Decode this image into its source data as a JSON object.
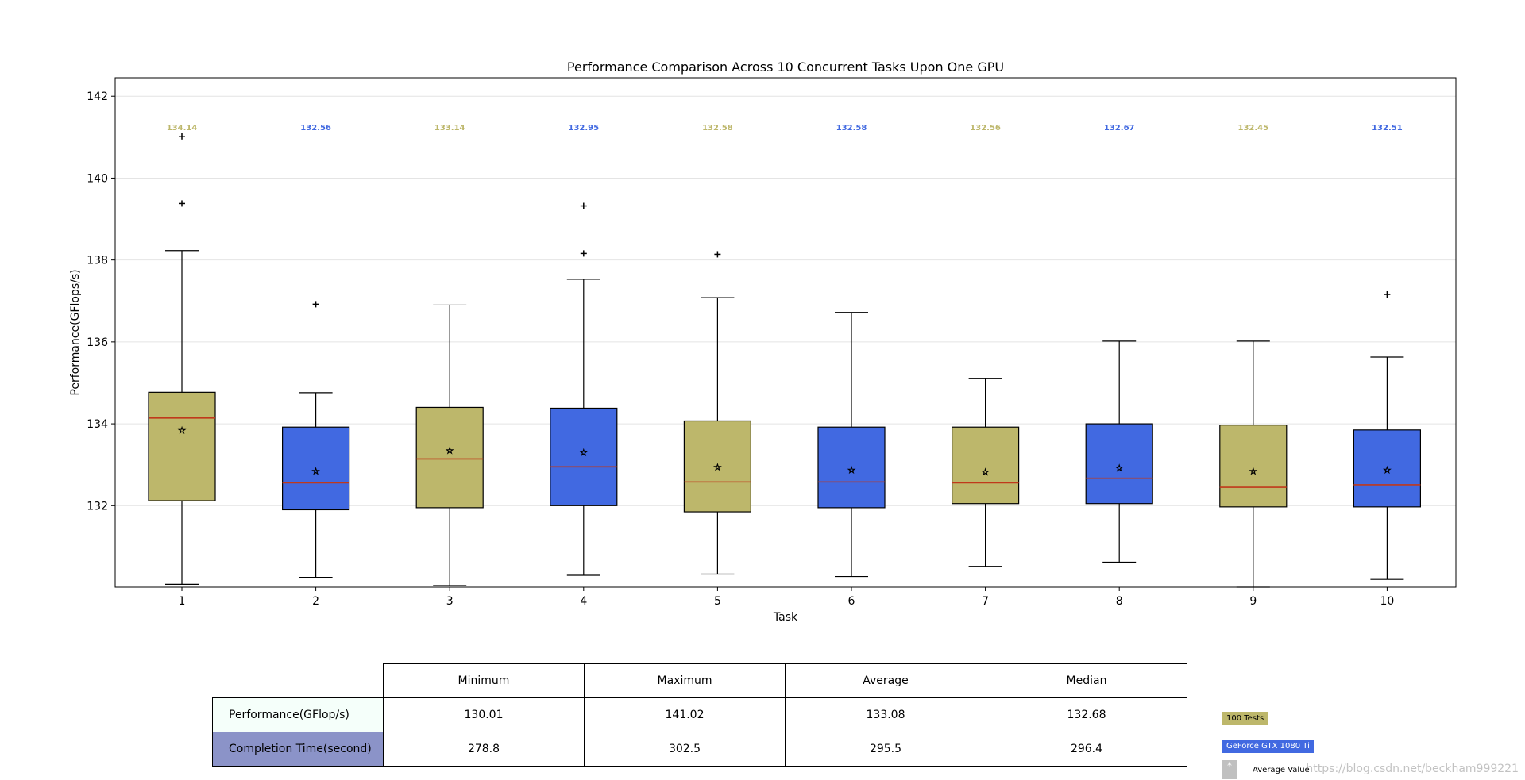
{
  "chart_data": {
    "type": "box",
    "title": "Performance Comparison Across 10 Concurrent Tasks Upon One GPU",
    "xlabel": "Task",
    "ylabel": "Performance(GFlops/s)",
    "ylim": [
      130.01,
      142.45
    ],
    "yticks": [
      132,
      134,
      136,
      138,
      140,
      142
    ],
    "categories": [
      "1",
      "2",
      "3",
      "4",
      "5",
      "6",
      "7",
      "8",
      "9",
      "10"
    ],
    "colors": {
      "odd": "#bdb76b",
      "even": "#4169e1",
      "median": "#c0391b",
      "odd_label": "#bdb76b",
      "even_label": "#4169e1"
    },
    "boxes": [
      {
        "label": "1",
        "whisker_low": 130.08,
        "q1": 132.12,
        "median": 134.14,
        "q3": 134.77,
        "whisker_high": 138.23,
        "mean": 133.85,
        "outliers": [
          141.02,
          139.38
        ],
        "median_label": "134.14"
      },
      {
        "label": "2",
        "whisker_low": 130.25,
        "q1": 131.9,
        "median": 132.56,
        "q3": 133.92,
        "whisker_high": 134.76,
        "mean": 132.85,
        "outliers": [
          136.92
        ],
        "median_label": "132.56"
      },
      {
        "label": "3",
        "whisker_low": 130.05,
        "q1": 131.95,
        "median": 133.14,
        "q3": 134.4,
        "whisker_high": 136.9,
        "mean": 133.35,
        "outliers": [],
        "median_label": "133.14"
      },
      {
        "label": "4",
        "whisker_low": 130.3,
        "q1": 132.0,
        "median": 132.95,
        "q3": 134.38,
        "whisker_high": 137.53,
        "mean": 133.3,
        "outliers": [
          139.32,
          138.16
        ],
        "median_label": "132.95"
      },
      {
        "label": "5",
        "whisker_low": 130.33,
        "q1": 131.85,
        "median": 132.58,
        "q3": 134.07,
        "whisker_high": 137.08,
        "mean": 132.95,
        "outliers": [
          138.14
        ],
        "median_label": "132.58"
      },
      {
        "label": "6",
        "whisker_low": 130.27,
        "q1": 131.95,
        "median": 132.58,
        "q3": 133.92,
        "whisker_high": 136.72,
        "mean": 132.88,
        "outliers": [],
        "median_label": "132.58"
      },
      {
        "label": "7",
        "whisker_low": 130.52,
        "q1": 132.05,
        "median": 132.56,
        "q3": 133.92,
        "whisker_high": 135.1,
        "mean": 132.83,
        "outliers": [],
        "median_label": "132.56"
      },
      {
        "label": "8",
        "whisker_low": 130.62,
        "q1": 132.05,
        "median": 132.67,
        "q3": 134.0,
        "whisker_high": 136.02,
        "mean": 132.93,
        "outliers": [],
        "median_label": "132.67"
      },
      {
        "label": "9",
        "whisker_low": 130.01,
        "q1": 131.97,
        "median": 132.45,
        "q3": 133.97,
        "whisker_high": 136.02,
        "mean": 132.85,
        "outliers": [],
        "median_label": "132.45"
      },
      {
        "label": "10",
        "whisker_low": 130.2,
        "q1": 131.97,
        "median": 132.51,
        "q3": 133.85,
        "whisker_high": 135.63,
        "mean": 132.88,
        "outliers": [
          137.16
        ],
        "median_label": "132.51"
      }
    ]
  },
  "table": {
    "columns": [
      "Minimum",
      "Maximum",
      "Average",
      "Median"
    ],
    "rows": [
      {
        "label": "Performance(GFlop/s)",
        "bg": "#f5fffa",
        "values": [
          "130.01",
          "141.02",
          "133.08",
          "132.68"
        ]
      },
      {
        "label": "Completion Time(second)",
        "bg": "#8b93c8",
        "values": [
          "278.8",
          "302.5",
          "295.5",
          "296.4"
        ]
      }
    ]
  },
  "legend": {
    "tests_label": "100 Tests",
    "gpu_label": "GeForce GTX 1080 Ti",
    "avg_symbol": "*",
    "avg_label": "Average Value",
    "tests_color": "#bdb76b",
    "gpu_color": "#4169e1",
    "avg_color": "#c0c0c0"
  },
  "watermark": "https://blog.csdn.net/beckham999221"
}
